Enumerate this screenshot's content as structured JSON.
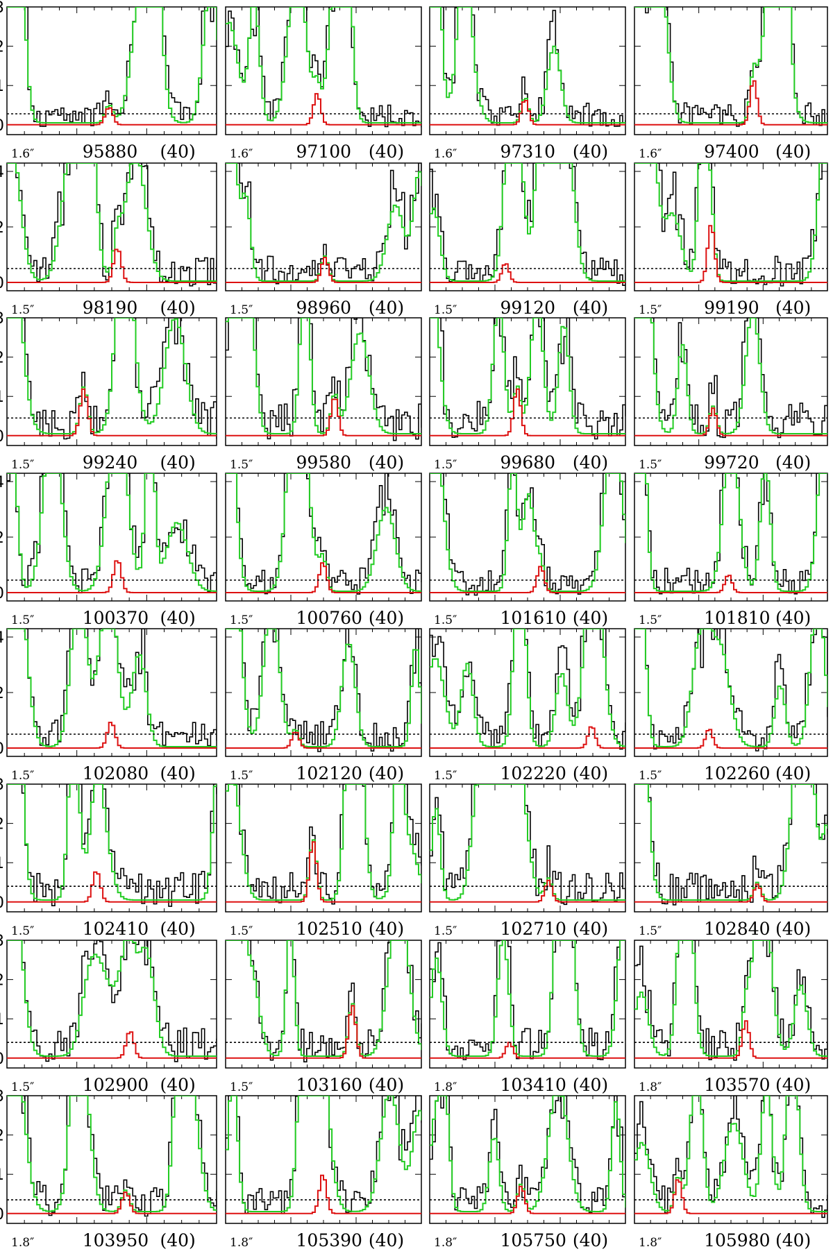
{
  "figure": {
    "colors": {
      "observed": "#000000",
      "model_total": "#22cc22",
      "model_species": "#dd1111",
      "noise_level": "#000000"
    },
    "y_axis_ranges": [
      {
        "row": 1,
        "ylim": [
          -0.25,
          3
        ],
        "ticks": [
          0,
          1,
          2,
          3
        ],
        "noise": 0.28
      },
      {
        "row": 2,
        "ylim": [
          -0.3,
          4.3
        ],
        "ticks": [
          0,
          2,
          4
        ],
        "noise": 0.5
      },
      {
        "row": 3,
        "ylim": [
          -0.25,
          3
        ],
        "ticks": [
          0,
          1,
          2,
          3
        ],
        "noise": 0.45
      },
      {
        "row": 4,
        "ylim": [
          -0.3,
          4.3
        ],
        "ticks": [
          0,
          2,
          4
        ],
        "noise": 0.45
      },
      {
        "row": 5,
        "ylim": [
          -0.3,
          4.3
        ],
        "ticks": [
          0,
          2,
          4
        ],
        "noise": 0.5
      },
      {
        "row": 6,
        "ylim": [
          -0.25,
          3
        ],
        "ticks": [
          0,
          1,
          2,
          3
        ],
        "noise": 0.4
      },
      {
        "row": 7,
        "ylim": [
          -0.25,
          3
        ],
        "ticks": [
          0,
          1,
          2,
          3
        ],
        "noise": 0.4
      },
      {
        "row": 8,
        "ylim": [
          -0.25,
          3
        ],
        "ticks": [
          0,
          1,
          2,
          3
        ],
        "noise": 0.35
      }
    ]
  },
  "chart_data": {
    "type": "line",
    "title": "",
    "xlabel": "",
    "ylabel": "",
    "panels": [
      {
        "row": 1,
        "col": 1,
        "beam": "1.6″",
        "freq": "95880",
        "width": "(40)",
        "peak": 0.45,
        "peak_at": 0.48
      },
      {
        "row": 1,
        "col": 2,
        "beam": "1.6″",
        "freq": "97100",
        "width": "(40)",
        "peak": 0.8,
        "peak_at": 0.46
      },
      {
        "row": 1,
        "col": 3,
        "beam": "1.6″",
        "freq": "97310",
        "width": "(40)",
        "peak": 0.65,
        "peak_at": 0.48
      },
      {
        "row": 1,
        "col": 4,
        "beam": "1.6″",
        "freq": "97400",
        "width": "(40)",
        "peak": 1.15,
        "peak_at": 0.61
      },
      {
        "row": 2,
        "col": 1,
        "beam": "1.5″",
        "freq": "98190",
        "width": "(40)",
        "peak": 1.25,
        "peak_at": 0.52
      },
      {
        "row": 2,
        "col": 2,
        "beam": "1.5″",
        "freq": "98960",
        "width": "(40)",
        "peak": 0.9,
        "peak_at": 0.5
      },
      {
        "row": 2,
        "col": 3,
        "beam": "1.5″",
        "freq": "99120",
        "width": "(40)",
        "peak": 0.7,
        "peak_at": 0.38
      },
      {
        "row": 2,
        "col": 4,
        "beam": "1.5″",
        "freq": "99190",
        "width": "(40)",
        "peak": 2.1,
        "peak_at": 0.39
      },
      {
        "row": 3,
        "col": 1,
        "beam": "1.5″",
        "freq": "99240",
        "width": "(40)",
        "peak": 1.2,
        "peak_at": 0.36
      },
      {
        "row": 3,
        "col": 2,
        "beam": "1.5″",
        "freq": "99580",
        "width": "(40)",
        "peak": 1.0,
        "peak_at": 0.55
      },
      {
        "row": 3,
        "col": 3,
        "beam": "1.5″",
        "freq": "99680",
        "width": "(40)",
        "peak": 1.2,
        "peak_at": 0.44
      },
      {
        "row": 3,
        "col": 4,
        "beam": "1.5″",
        "freq": "99720",
        "width": "(40)",
        "peak": 0.7,
        "peak_at": 0.4
      },
      {
        "row": 4,
        "col": 1,
        "beam": "1.5″",
        "freq": "100370",
        "width": "(40)",
        "peak": 1.2,
        "peak_at": 0.52
      },
      {
        "row": 4,
        "col": 2,
        "beam": "1.5″",
        "freq": "100760",
        "width": "(40)",
        "peak": 1.1,
        "peak_at": 0.49
      },
      {
        "row": 4,
        "col": 3,
        "beam": "1.5″",
        "freq": "101610",
        "width": "(40)",
        "peak": 0.95,
        "peak_at": 0.56
      },
      {
        "row": 4,
        "col": 4,
        "beam": "1.5″",
        "freq": "101810",
        "width": "(40)",
        "peak": 0.65,
        "peak_at": 0.48
      },
      {
        "row": 5,
        "col": 1,
        "beam": "1.5″",
        "freq": "102080",
        "width": "(40)",
        "peak": 0.95,
        "peak_at": 0.49
      },
      {
        "row": 5,
        "col": 2,
        "beam": "1.5″",
        "freq": "102120",
        "width": "(40)",
        "peak": 0.6,
        "peak_at": 0.35
      },
      {
        "row": 5,
        "col": 3,
        "beam": "1.5″",
        "freq": "102220",
        "width": "(40)",
        "peak": 0.8,
        "peak_at": 0.82
      },
      {
        "row": 5,
        "col": 4,
        "beam": "1.5″",
        "freq": "102260",
        "width": "(40)",
        "peak": 0.7,
        "peak_at": 0.38
      },
      {
        "row": 6,
        "col": 1,
        "beam": "1.5″",
        "freq": "102410",
        "width": "(40)",
        "peak": 0.8,
        "peak_at": 0.42
      },
      {
        "row": 6,
        "col": 2,
        "beam": "1.5″",
        "freq": "102510",
        "width": "(40)",
        "peak": 1.55,
        "peak_at": 0.44
      },
      {
        "row": 6,
        "col": 3,
        "beam": "1.5″",
        "freq": "102710",
        "width": "(40)",
        "peak": 0.55,
        "peak_at": 0.6
      },
      {
        "row": 6,
        "col": 4,
        "beam": "1.5″",
        "freq": "102840",
        "width": "(40)",
        "peak": 0.45,
        "peak_at": 0.63
      },
      {
        "row": 7,
        "col": 1,
        "beam": "1.5″",
        "freq": "102900",
        "width": "(40)",
        "peak": 0.7,
        "peak_at": 0.58
      },
      {
        "row": 7,
        "col": 2,
        "beam": "1.5″",
        "freq": "103160",
        "width": "(40)",
        "peak": 1.35,
        "peak_at": 0.64
      },
      {
        "row": 7,
        "col": 3,
        "beam": "1.8″",
        "freq": "103410",
        "width": "(40)",
        "peak": 0.4,
        "peak_at": 0.4
      },
      {
        "row": 7,
        "col": 4,
        "beam": "1.8″",
        "freq": "103570",
        "width": "(40)",
        "peak": 0.95,
        "peak_at": 0.57
      },
      {
        "row": 8,
        "col": 1,
        "beam": "1.8″",
        "freq": "103950",
        "width": "(40)",
        "peak": 0.55,
        "peak_at": 0.56
      },
      {
        "row": 8,
        "col": 2,
        "beam": "1.8″",
        "freq": "105390",
        "width": "(40)",
        "peak": 1.0,
        "peak_at": 0.49
      },
      {
        "row": 8,
        "col": 3,
        "beam": "1.8″",
        "freq": "105750",
        "width": "(40)",
        "peak": 0.7,
        "peak_at": 0.46
      },
      {
        "row": 8,
        "col": 4,
        "beam": "1.8″",
        "freq": "105980",
        "width": "(40)",
        "peak": 0.9,
        "peak_at": 0.22
      }
    ]
  }
}
